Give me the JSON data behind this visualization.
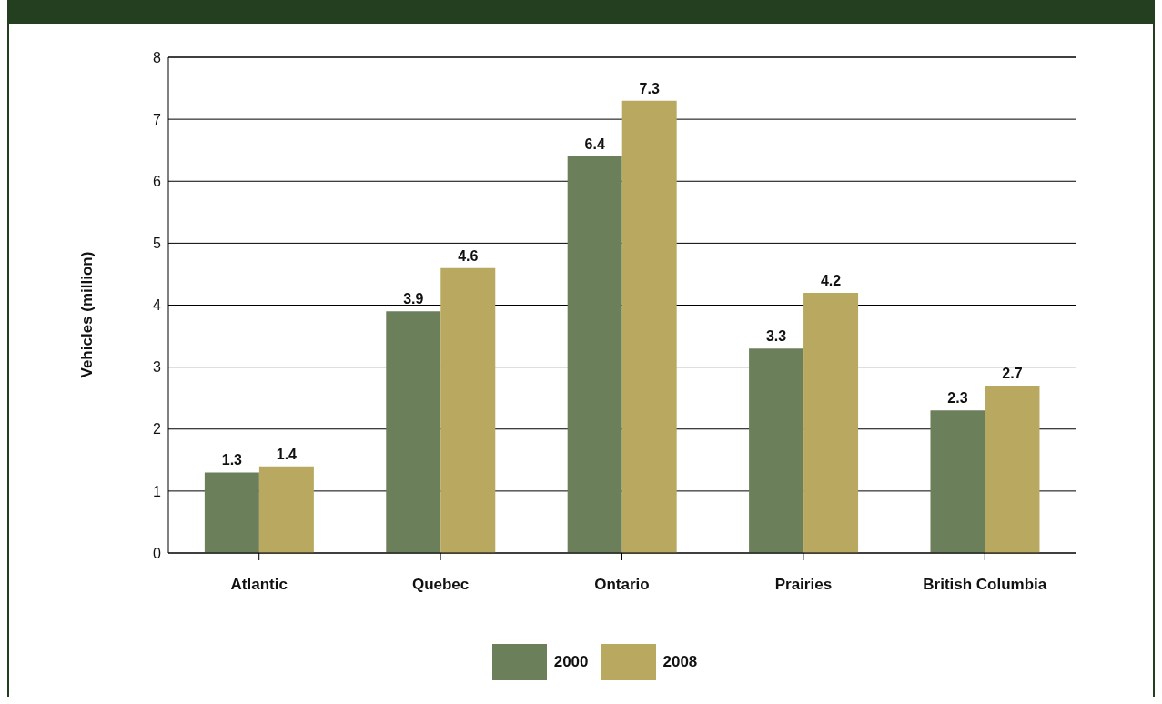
{
  "chart_data": {
    "type": "bar",
    "ylabel": "Vehicles (million)",
    "categories": [
      "Atlantic",
      "Quebec",
      "Ontario",
      "Prairies",
      "British Columbia"
    ],
    "series": [
      {
        "name": "2000",
        "color": "#6b7f5a",
        "values": [
          1.3,
          3.9,
          6.4,
          3.3,
          2.3
        ]
      },
      {
        "name": "2008",
        "color": "#b9a860",
        "values": [
          1.4,
          4.6,
          7.3,
          4.2,
          2.7
        ]
      }
    ],
    "ylim": [
      0,
      8
    ],
    "yticks": [
      0,
      1,
      2,
      3,
      4,
      5,
      6,
      7,
      8
    ],
    "grid": "y",
    "legend": "bottom",
    "data_labels": true
  }
}
